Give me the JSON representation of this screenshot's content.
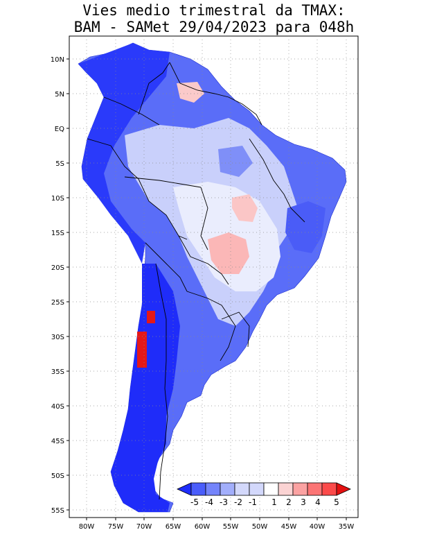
{
  "title": {
    "line1": "Vies medio trimestral da TMAX:",
    "line2": "BAM - SAMet 29/04/2023  para 048h"
  },
  "map": {
    "lat_ticks": [
      "10N",
      "5N",
      "EQ",
      "5S",
      "10S",
      "15S",
      "20S",
      "25S",
      "30S",
      "35S",
      "40S",
      "45S",
      "50S",
      "55S"
    ],
    "lon_ticks": [
      "80W",
      "75W",
      "70W",
      "65W",
      "60W",
      "55W",
      "50W",
      "45W",
      "40W",
      "35W"
    ],
    "grid": "dotted"
  },
  "colorbar": {
    "labels": [
      "-5",
      "-4",
      "-3",
      "-2",
      "-1",
      "1",
      "2",
      "3",
      "4",
      "5"
    ],
    "colors": [
      "#1e2dfb",
      "#4a5dfb",
      "#7484fb",
      "#a2aefb",
      "#d3d8fb",
      "#ffffff",
      "#fbd3d3",
      "#fba2a2",
      "#fb7474",
      "#fb4a4a",
      "#e41010"
    ]
  }
}
